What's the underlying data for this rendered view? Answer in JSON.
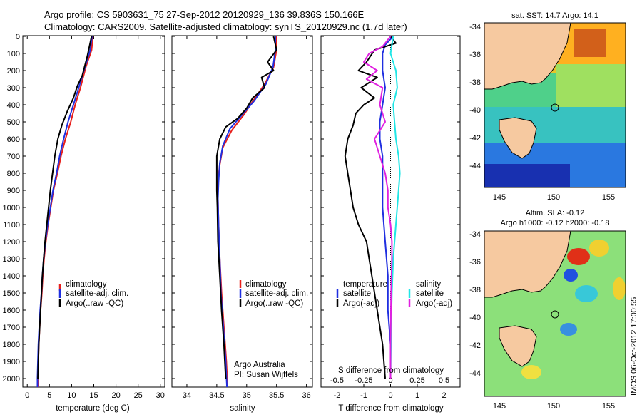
{
  "header": {
    "line1": "Argo profile: CS 5903631_75 27-Sep-2012 20120929_136 39.836S 150.166E",
    "line2": "Climatology: CARS2009. Satellite-adjusted climatology: synTS_20120929.nc (1.7d later)"
  },
  "colors": {
    "climatology": "#e8201c",
    "satellite": "#1f2fe0",
    "argo": "#000000",
    "sat_s": "#22e6e6",
    "argo_s": "#e020e0"
  },
  "chart_data": [
    {
      "type": "line",
      "id": "temperature",
      "xlabel": "temperature (deg C)",
      "xlim": [
        -1,
        31
      ],
      "ylim": [
        0,
        2050
      ],
      "xticks": [
        "0",
        "5",
        "10",
        "15",
        "20",
        "25",
        "30"
      ],
      "yticks": [
        "0",
        "100",
        "200",
        "300",
        "400",
        "500",
        "600",
        "700",
        "800",
        "900",
        "1000",
        "1100",
        "1200",
        "1300",
        "1400",
        "1500",
        "1600",
        "1700",
        "1800",
        "1900",
        "2000"
      ],
      "legend": [
        "climatology",
        "satellite-adj. clim.",
        "Argo(..raw -QC)"
      ],
      "series": [
        {
          "name": "climatology",
          "points": [
            [
              14.8,
              0
            ],
            [
              14.5,
              80
            ],
            [
              13.2,
              180
            ],
            [
              12.0,
              300
            ],
            [
              10.8,
              400
            ],
            [
              9.8,
              500
            ],
            [
              8.6,
              600
            ],
            [
              7.6,
              700
            ],
            [
              6.8,
              800
            ],
            [
              5.9,
              900
            ],
            [
              5.3,
              1000
            ],
            [
              4.7,
              1100
            ],
            [
              4.2,
              1200
            ],
            [
              3.8,
              1300
            ],
            [
              3.5,
              1400
            ],
            [
              3.3,
              1500
            ],
            [
              3.0,
              1600
            ],
            [
              2.8,
              1700
            ],
            [
              2.6,
              1800
            ],
            [
              2.5,
              1900
            ],
            [
              2.4,
              2000
            ],
            [
              2.4,
              2050
            ]
          ]
        },
        {
          "name": "satellite-adj. clim.",
          "points": [
            [
              14.6,
              0
            ],
            [
              14.2,
              80
            ],
            [
              13.0,
              180
            ],
            [
              11.6,
              300
            ],
            [
              10.4,
              400
            ],
            [
              9.2,
              500
            ],
            [
              8.2,
              600
            ],
            [
              7.3,
              700
            ],
            [
              6.6,
              800
            ],
            [
              5.8,
              900
            ],
            [
              5.2,
              1000
            ],
            [
              4.6,
              1100
            ],
            [
              4.1,
              1200
            ],
            [
              3.7,
              1300
            ],
            [
              3.4,
              1400
            ],
            [
              3.2,
              1500
            ],
            [
              2.9,
              1600
            ],
            [
              2.7,
              1700
            ],
            [
              2.5,
              1800
            ],
            [
              2.4,
              1900
            ],
            [
              2.3,
              2000
            ],
            [
              2.3,
              2050
            ]
          ]
        },
        {
          "name": "Argo(..raw -QC)",
          "points": [
            [
              14.5,
              0
            ],
            [
              14.0,
              60
            ],
            [
              13.5,
              120
            ],
            [
              12.9,
              180
            ],
            [
              12.4,
              230
            ],
            [
              11.3,
              290
            ],
            [
              10.4,
              360
            ],
            [
              9.0,
              440
            ],
            [
              7.8,
              520
            ],
            [
              6.9,
              600
            ],
            [
              6.2,
              700
            ],
            [
              5.7,
              800
            ],
            [
              5.2,
              900
            ],
            [
              4.8,
              1000
            ],
            [
              4.4,
              1100
            ],
            [
              4.0,
              1200
            ],
            [
              3.7,
              1300
            ],
            [
              3.4,
              1400
            ],
            [
              3.2,
              1500
            ],
            [
              3.0,
              1600
            ],
            [
              2.8,
              1700
            ],
            [
              2.6,
              1800
            ],
            [
              2.5,
              1900
            ],
            [
              2.4,
              2000
            ]
          ]
        }
      ]
    },
    {
      "type": "line",
      "id": "salinity",
      "xlabel": "salinity",
      "xlim": [
        33.75,
        36.1
      ],
      "ylim": [
        0,
        2050
      ],
      "xticks": [
        "34",
        "34.5",
        "35",
        "35.5",
        "36"
      ],
      "legend": [
        "climatology",
        "satellite-adj. clim.",
        "Argo(..raw -QC)"
      ],
      "annotation": [
        "Argo Australia",
        "PI: Susan Wijffels"
      ],
      "series": [
        {
          "name": "climatology",
          "points": [
            [
              35.5,
              0
            ],
            [
              35.5,
              80
            ],
            [
              35.45,
              180
            ],
            [
              35.3,
              280
            ],
            [
              35.1,
              380
            ],
            [
              34.95,
              460
            ],
            [
              34.75,
              550
            ],
            [
              34.6,
              650
            ],
            [
              34.55,
              750
            ],
            [
              34.52,
              850
            ],
            [
              34.52,
              950
            ],
            [
              34.53,
              1100
            ],
            [
              34.55,
              1300
            ],
            [
              34.58,
              1500
            ],
            [
              34.62,
              1700
            ],
            [
              34.66,
              1900
            ],
            [
              34.68,
              2050
            ]
          ]
        },
        {
          "name": "satellite-adj. clim.",
          "points": [
            [
              35.48,
              0
            ],
            [
              35.48,
              80
            ],
            [
              35.44,
              180
            ],
            [
              35.32,
              280
            ],
            [
              35.12,
              380
            ],
            [
              34.92,
              460
            ],
            [
              34.72,
              540
            ],
            [
              34.6,
              640
            ],
            [
              34.55,
              740
            ],
            [
              34.53,
              850
            ],
            [
              34.52,
              950
            ],
            [
              34.53,
              1100
            ],
            [
              34.55,
              1300
            ],
            [
              34.57,
              1500
            ],
            [
              34.61,
              1700
            ],
            [
              34.65,
              1900
            ],
            [
              34.67,
              2050
            ]
          ]
        },
        {
          "name": "Argo(..raw -QC)",
          "points": [
            [
              35.45,
              0
            ],
            [
              35.5,
              80
            ],
            [
              35.35,
              150
            ],
            [
              35.45,
              200
            ],
            [
              35.25,
              240
            ],
            [
              35.3,
              300
            ],
            [
              35.1,
              360
            ],
            [
              35.0,
              420
            ],
            [
              34.85,
              480
            ],
            [
              34.65,
              530
            ],
            [
              34.55,
              600
            ],
            [
              34.5,
              700
            ],
            [
              34.5,
              800
            ],
            [
              34.5,
              900
            ],
            [
              34.51,
              1000
            ],
            [
              34.52,
              1200
            ],
            [
              34.55,
              1400
            ],
            [
              34.58,
              1600
            ],
            [
              34.62,
              1800
            ],
            [
              34.65,
              2000
            ]
          ]
        }
      ]
    },
    {
      "type": "line",
      "id": "difference",
      "xlabel": "T difference from climatology",
      "xlabel2": "S difference from climatology",
      "xlim": [
        -2.6,
        2.6
      ],
      "ylim": [
        0,
        2050
      ],
      "xticks": [
        "-2",
        "-1",
        "0",
        "1",
        "2"
      ],
      "xticks2": [
        "-0.5",
        "-0.25",
        "0",
        "0.25",
        "0.5"
      ],
      "legend": {
        "temperature": [
          "satellite",
          "Argo(-adj)"
        ],
        "salinity": [
          "satellite",
          "Argo(-adj)"
        ]
      },
      "series": [
        {
          "name": "temperature satellite",
          "points": [
            [
              0.1,
              0
            ],
            [
              -0.2,
              50
            ],
            [
              -0.3,
              100
            ],
            [
              -0.3,
              200
            ],
            [
              -0.2,
              300
            ],
            [
              -0.3,
              400
            ],
            [
              -0.4,
              500
            ],
            [
              -0.4,
              600
            ],
            [
              -0.3,
              700
            ],
            [
              -0.3,
              800
            ],
            [
              -0.3,
              900
            ],
            [
              -0.3,
              1000
            ],
            [
              -0.2,
              1200
            ],
            [
              -0.1,
              1400
            ],
            [
              -0.1,
              1600
            ],
            [
              0,
              1800
            ],
            [
              0,
              2000
            ]
          ]
        },
        {
          "name": "temperature Argo(-adj)",
          "points": [
            [
              0.0,
              0
            ],
            [
              0.2,
              40
            ],
            [
              -0.6,
              80
            ],
            [
              -0.9,
              150
            ],
            [
              -1.2,
              200
            ],
            [
              -0.5,
              240
            ],
            [
              -1.1,
              300
            ],
            [
              -0.6,
              360
            ],
            [
              -1.0,
              400
            ],
            [
              -1.3,
              450
            ],
            [
              -1.4,
              520
            ],
            [
              -1.6,
              600
            ],
            [
              -1.7,
              700
            ],
            [
              -1.6,
              800
            ],
            [
              -1.5,
              900
            ],
            [
              -1.4,
              1000
            ],
            [
              -1.2,
              1100
            ],
            [
              -0.9,
              1200
            ],
            [
              -0.8,
              1300
            ],
            [
              -0.7,
              1400
            ],
            [
              -0.5,
              1600
            ],
            [
              -0.3,
              1800
            ],
            [
              -0.2,
              2000
            ]
          ]
        },
        {
          "name": "salinity satellite",
          "points": [
            [
              0.1,
              0
            ],
            [
              0.0,
              100
            ],
            [
              0.2,
              200
            ],
            [
              0.25,
              300
            ],
            [
              0.1,
              400
            ],
            [
              0.15,
              500
            ],
            [
              0.2,
              600
            ],
            [
              0.3,
              700
            ],
            [
              0.35,
              800
            ],
            [
              0.3,
              900
            ],
            [
              0.25,
              1000
            ],
            [
              0.2,
              1100
            ],
            [
              0.1,
              1300
            ],
            [
              0.05,
              1500
            ],
            [
              0.02,
              1700
            ],
            [
              0.0,
              2000
            ]
          ]
        },
        {
          "name": "salinity Argo(-adj)",
          "points": [
            [
              0.0,
              0
            ],
            [
              -0.3,
              60
            ],
            [
              -0.8,
              100
            ],
            [
              -1.0,
              150
            ],
            [
              -0.5,
              200
            ],
            [
              -0.9,
              250
            ],
            [
              -0.3,
              300
            ],
            [
              -0.4,
              400
            ],
            [
              -0.2,
              500
            ],
            [
              -0.6,
              600
            ],
            [
              -0.4,
              700
            ],
            [
              -0.2,
              800
            ],
            [
              -0.1,
              900
            ],
            [
              -0.1,
              1000
            ],
            [
              0.0,
              1100
            ],
            [
              0.05,
              1200
            ],
            [
              0.05,
              1300
            ],
            [
              0.02,
              1500
            ],
            [
              0.0,
              1800
            ],
            [
              0.0,
              2000
            ]
          ]
        }
      ]
    },
    {
      "type": "heatmap",
      "id": "sst-map",
      "title": "sat. SST: 14.7 Argo: 14.1",
      "xticks": [
        "145",
        "150",
        "155"
      ],
      "yticks": [
        "-34",
        "-36",
        "-38",
        "-40",
        "-42",
        "-44"
      ]
    },
    {
      "type": "heatmap",
      "id": "sla-map",
      "title": "Altim. SLA: -0.12",
      "subtitle": "Argo h1000: -0.12 h2000: -0.18",
      "xticks": [
        "145",
        "150",
        "155"
      ],
      "yticks": [
        "-34",
        "-36",
        "-38",
        "-40",
        "-42",
        "-44"
      ]
    }
  ],
  "watermark": "IMOS 06-Oct-2012 17:00:55"
}
